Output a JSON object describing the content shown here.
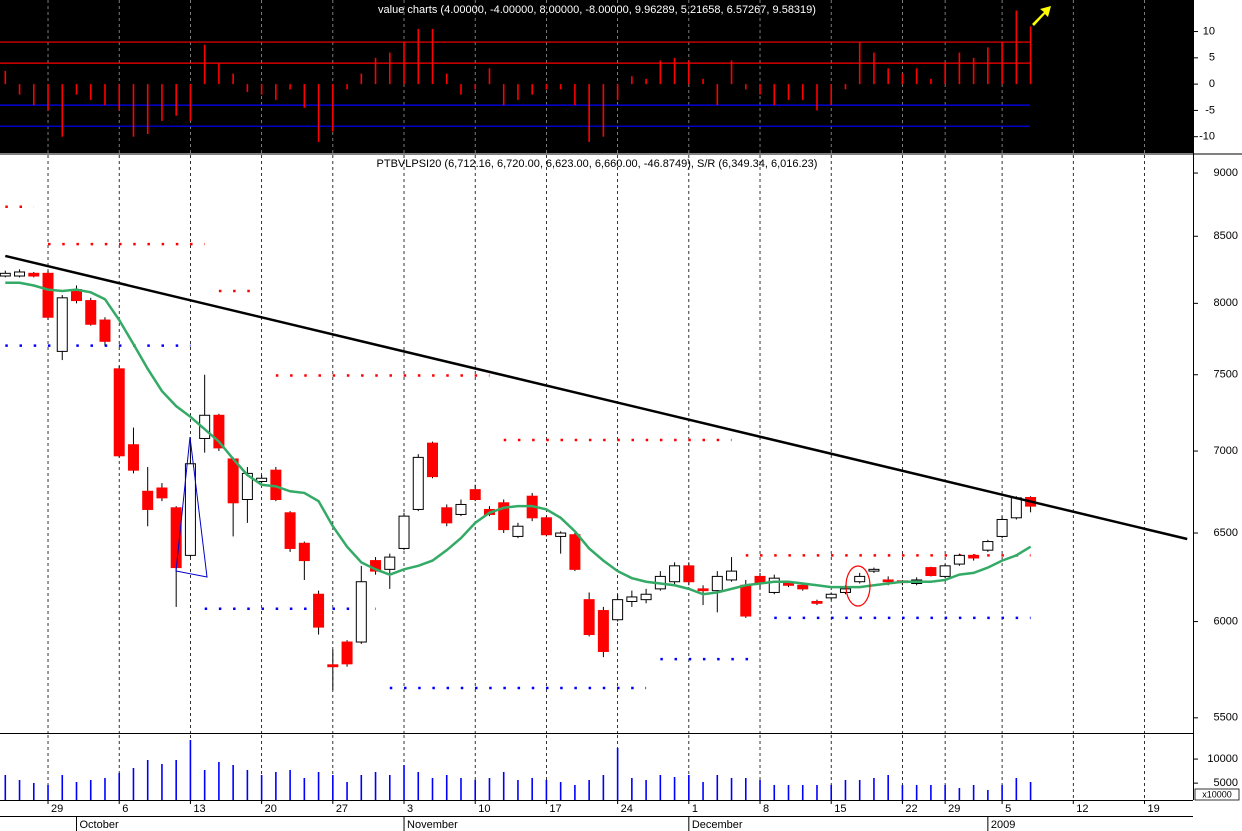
{
  "chart_data": [
    {
      "type": "bar",
      "title": "value charts (4.00000, -4.00000, 8.00000, -8.00000, 9.96289, 5.21658, 6.57267, 9.58319)",
      "color": "#ff0000",
      "background": "#000000",
      "values": [
        2.5,
        -2,
        -4,
        -5,
        -10,
        -2,
        -3,
        -4,
        -5,
        -10,
        -9.5,
        -7,
        -6,
        -7,
        7.5,
        4,
        2,
        -1.5,
        -2,
        -3,
        -1,
        -4.5,
        -11,
        -9,
        -1,
        2,
        5,
        6,
        8,
        10.5,
        10.5,
        2,
        -2,
        -1,
        3,
        -4,
        -3,
        -2,
        -1,
        -1,
        -4,
        -11,
        -10,
        -3,
        1.5,
        1,
        4.5,
        5,
        4.5,
        1,
        -4,
        4.5,
        -1,
        -2,
        -4,
        -3,
        -3,
        -5,
        -4,
        -1,
        8,
        6,
        3,
        2,
        3,
        1,
        4,
        6,
        5,
        7,
        8,
        14,
        11
      ],
      "levels": [
        {
          "value": 8,
          "color": "#ff0000"
        },
        {
          "value": 4,
          "color": "#ff0000"
        },
        {
          "value": -4,
          "color": "#0000ff"
        },
        {
          "value": -8,
          "color": "#0000ff"
        }
      ],
      "ylim": [
        -13.1,
        16
      ],
      "yticks": [
        10,
        5,
        0,
        -5,
        -10
      ],
      "grid": true
    },
    {
      "type": "candlestick",
      "title": "PTBVLPSI20 (6,712.16, 6,720.00, 6,623.00, 6,660.00, -46.8749), S/R (6,349.34, 6,016.23)",
      "up_color": "#ffffff",
      "down_color": "#ff0000",
      "edge_color": "#000000",
      "open": [
        8200,
        8200,
        8220,
        8220,
        7660,
        8100,
        8020,
        7880,
        7540,
        7040,
        6750,
        6770,
        6650,
        6370,
        7080,
        7230,
        6950,
        6700,
        6810,
        6880,
        6620,
        6440,
        6150,
        5770,
        5890,
        5890,
        6340,
        6290,
        6410,
        6640,
        7050,
        6650,
        6610,
        6760,
        6640,
        6680,
        6480,
        6720,
        6590,
        6480,
        6490,
        6120,
        6060,
        6010,
        6110,
        6120,
        6180,
        6220,
        6310,
        6180,
        6170,
        6230,
        6200,
        6250,
        6160,
        6210,
        6200,
        6110,
        6130,
        6160,
        6220,
        6280,
        6230,
        6225,
        6210,
        6300,
        6250,
        6320,
        6370,
        6400,
        6480,
        6590,
        6712.16
      ],
      "high": [
        8240,
        8250,
        8230,
        8240,
        8060,
        8130,
        8040,
        7900,
        7560,
        7150,
        6900,
        6800,
        6660,
        7080,
        7500,
        7240,
        6960,
        6900,
        6850,
        6900,
        6630,
        6450,
        6170,
        5850,
        5900,
        6310,
        6360,
        6380,
        6620,
        6980,
        7060,
        6670,
        6700,
        6790,
        6660,
        6700,
        6560,
        6740,
        6600,
        6510,
        6500,
        6160,
        6080,
        6150,
        6170,
        6180,
        6280,
        6330,
        6330,
        6200,
        6280,
        6360,
        6230,
        6270,
        6260,
        6220,
        6210,
        6120,
        6160,
        6200,
        6270,
        6300,
        6250,
        6230,
        6245,
        6305,
        6320,
        6380,
        6375,
        6460,
        6600,
        6720,
        6720
      ],
      "low": [
        8190,
        8190,
        8190,
        7880,
        7600,
        8000,
        7840,
        7700,
        6960,
        6860,
        6540,
        6690,
        6080,
        6360,
        6990,
        7000,
        6480,
        6560,
        6800,
        6690,
        6390,
        6230,
        5930,
        5640,
        5760,
        5880,
        6260,
        6180,
        6400,
        6630,
        6830,
        6540,
        6600,
        6690,
        6600,
        6500,
        6470,
        6570,
        6480,
        6380,
        6280,
        5920,
        5810,
        6000,
        6080,
        6100,
        6170,
        6200,
        6200,
        6090,
        6050,
        6220,
        6020,
        6180,
        6150,
        6190,
        6170,
        6090,
        6120,
        6150,
        6210,
        6270,
        6200,
        6200,
        6200,
        6250,
        6240,
        6310,
        6340,
        6390,
        6470,
        6580,
        6623
      ],
      "close": [
        8220,
        8230,
        8200,
        7900,
        8040,
        8020,
        7850,
        7730,
        6970,
        6880,
        6640,
        6710,
        6300,
        6920,
        7230,
        7020,
        6680,
        6860,
        6830,
        6700,
        6410,
        6340,
        5970,
        5760,
        5775,
        6220,
        6280,
        6360,
        6600,
        6960,
        6840,
        6560,
        6670,
        6700,
        6610,
        6520,
        6540,
        6590,
        6490,
        6500,
        6290,
        5930,
        5840,
        6120,
        6135,
        6150,
        6250,
        6310,
        6220,
        6170,
        6250,
        6280,
        6030,
        6210,
        6240,
        6200,
        6180,
        6100,
        6150,
        6180,
        6250,
        6290,
        6220,
        6215,
        6230,
        6255,
        6310,
        6370,
        6355,
        6450,
        6580,
        6710,
        6660
      ],
      "moving_average": {
        "color": "#33aa66",
        "values": [
          8150,
          8150,
          8130,
          8100,
          8090,
          8100,
          8080,
          8030,
          7880,
          7710,
          7540,
          7390,
          7290,
          7220,
          7140,
          7060,
          6950,
          6850,
          6790,
          6780,
          6750,
          6740,
          6690,
          6540,
          6420,
          6330,
          6290,
          6260,
          6290,
          6310,
          6340,
          6400,
          6470,
          6560,
          6620,
          6650,
          6660,
          6660,
          6640,
          6590,
          6510,
          6410,
          6340,
          6280,
          6240,
          6220,
          6210,
          6200,
          6180,
          6150,
          6160,
          6180,
          6200,
          6210,
          6220,
          6220,
          6210,
          6200,
          6190,
          6190,
          6190,
          6200,
          6210,
          6220,
          6220,
          6220,
          6230,
          6260,
          6270,
          6300,
          6340,
          6370,
          6420
        ]
      },
      "trend_line": {
        "color": "#000000",
        "x": [
          0,
          83
        ],
        "values": [
          8350,
          6465
        ]
      },
      "support_resistance": [
        {
          "color": "#ff0000",
          "segments": [
            {
              "from": 0,
              "to": 2,
              "value": 8730
            },
            {
              "from": 3,
              "to": 14,
              "value": 8440
            },
            {
              "from": 15,
              "to": 18,
              "value": 8090
            },
            {
              "from": 19,
              "to": 34,
              "value": 7495
            },
            {
              "from": 35,
              "to": 51,
              "value": 7070
            },
            {
              "from": 52,
              "to": 72,
              "value": 6370
            }
          ]
        },
        {
          "color": "#0000ff",
          "segments": [
            {
              "from": 0,
              "to": 13,
              "value": 7700
            },
            {
              "from": 14,
              "to": 26,
              "value": 6070
            },
            {
              "from": 27,
              "to": 45,
              "value": 5650
            },
            {
              "from": 46,
              "to": 53,
              "value": 5800
            },
            {
              "from": 54,
              "to": 72,
              "value": 6020
            }
          ]
        }
      ],
      "log_scale": true,
      "ylim": [
        5425,
        9148
      ],
      "yticks": [
        9000,
        8500,
        8000,
        7500,
        7000,
        6500,
        6000,
        5500
      ],
      "grid": true
    },
    {
      "type": "bar",
      "color": "#0000ff",
      "unit_label": "x10000",
      "categories": [
        null,
        null,
        null,
        "29",
        null,
        null,
        null,
        null,
        "6",
        null,
        null,
        null,
        null,
        "13",
        null,
        null,
        null,
        null,
        "20",
        null,
        null,
        null,
        null,
        "27",
        null,
        null,
        null,
        null,
        "3",
        null,
        null,
        null,
        null,
        "10",
        null,
        null,
        null,
        null,
        "17",
        null,
        null,
        null,
        null,
        "24",
        null,
        null,
        null,
        null,
        "1",
        null,
        null,
        null,
        null,
        "8",
        null,
        null,
        null,
        null,
        "15",
        null,
        null,
        null,
        null,
        "22",
        null,
        null,
        "29",
        null,
        null,
        null,
        "5",
        null,
        null,
        null,
        null,
        "12",
        null,
        null,
        null,
        null,
        "19",
        null,
        null,
        null
      ],
      "months": [
        {
          "label": "October",
          "index": 5
        },
        {
          "label": "November",
          "index": 28
        },
        {
          "label": "December",
          "index": 48
        },
        {
          "label": "2009",
          "index": 69
        }
      ],
      "values": [
        6690,
        5650,
        5030,
        4620,
        6690,
        5240,
        5650,
        6070,
        7110,
        8150,
        9810,
        8980,
        9810,
        13960,
        7730,
        9390,
        8770,
        7730,
        6690,
        7320,
        7730,
        6070,
        7320,
        6690,
        5240,
        6690,
        7320,
        6690,
        8770,
        7320,
        6070,
        6690,
        6070,
        5650,
        6070,
        7320,
        5650,
        6070,
        5650,
        5240,
        4620,
        5650,
        6690,
        12300,
        6070,
        5650,
        6690,
        6280,
        6690,
        5240,
        6690,
        6070,
        6070,
        5650,
        4620,
        4620,
        4620,
        4620,
        4620,
        5650,
        5650,
        6070,
        6690,
        4620,
        4620,
        4620,
        4620,
        3990,
        4620,
        3580,
        4620,
        6070,
        5240,
        null,
        null,
        null,
        null,
        null,
        null,
        null,
        null,
        null,
        null,
        null
      ],
      "ylim": [
        1500,
        15000
      ],
      "yticks": [
        10000,
        5000
      ],
      "grid": true
    }
  ]
}
